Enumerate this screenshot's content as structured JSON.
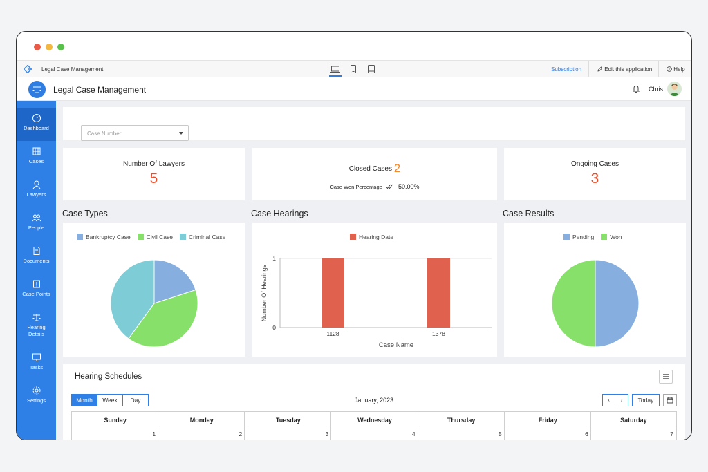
{
  "window": {
    "dots": [
      "#ea5a47",
      "#f4b73f",
      "#58c24a"
    ]
  },
  "topbar": {
    "app_title": "Legal Case Management",
    "subscription": "Subscription",
    "edit": "Edit this application",
    "help": "Help"
  },
  "header": {
    "app_name": "Legal Case Management",
    "user": "Chris"
  },
  "sidebar": {
    "items": [
      {
        "label": "Dashboard",
        "icon": "dashboard-icon"
      },
      {
        "label": "Cases",
        "icon": "cases-icon"
      },
      {
        "label": "Lawyers",
        "icon": "user-icon"
      },
      {
        "label": "People",
        "icon": "people-icon"
      },
      {
        "label": "Documents",
        "icon": "document-icon"
      },
      {
        "label": "Case Points",
        "icon": "case-points-icon"
      },
      {
        "label": "Hearing",
        "label2": "Details",
        "icon": "scales-icon"
      },
      {
        "label": "Tasks",
        "icon": "monitor-icon"
      },
      {
        "label": "Settings",
        "icon": "gear-icon"
      }
    ]
  },
  "filter": {
    "placeholder": "Case Number"
  },
  "stats": {
    "lawyers": {
      "title": "Number Of Lawyers",
      "value": "5"
    },
    "closed": {
      "title": "Closed Cases",
      "value": "2",
      "won_label": "Case Won Percentage",
      "won_value": "50.00%"
    },
    "ongoing": {
      "title": "Ongoing Cases",
      "value": "3"
    }
  },
  "sections": {
    "case_types": "Case Types",
    "case_hearings": "Case Hearings",
    "case_results": "Case Results"
  },
  "chart_data": [
    {
      "type": "pie",
      "title": "Case Types",
      "categories": [
        "Bankruptcy Case",
        "Civil Case",
        "Criminal Case"
      ],
      "values": [
        1,
        2,
        2
      ],
      "colors": [
        "#86aede",
        "#86e069",
        "#7ecdd6"
      ],
      "legend": "top"
    },
    {
      "type": "bar",
      "title": "Case Hearings",
      "categories": [
        "1128",
        "1378"
      ],
      "series": [
        {
          "name": "Hearing Date",
          "values": [
            1,
            1
          ]
        }
      ],
      "xlabel": "Case Name",
      "ylabel": "Number Of Hearings",
      "yticks": [
        "0",
        "1"
      ],
      "ylim": [
        0,
        1
      ],
      "colors": [
        "#e0614d"
      ],
      "legend": "top"
    },
    {
      "type": "pie",
      "title": "Case Results",
      "categories": [
        "Pending",
        "Won"
      ],
      "values": [
        1,
        1
      ],
      "colors": [
        "#86aede",
        "#86e069"
      ],
      "legend": "top"
    }
  ],
  "schedule": {
    "title": "Hearing Schedules",
    "views": [
      "Month",
      "Week",
      "Day"
    ],
    "month": "January, 2023",
    "today": "Today",
    "days": [
      "Sunday",
      "Monday",
      "Tuesday",
      "Wednesday",
      "Thursday",
      "Friday",
      "Saturday"
    ],
    "dates": [
      "1",
      "2",
      "3",
      "4",
      "5",
      "6",
      "7"
    ]
  },
  "colors": {
    "accent": "#2f80e6",
    "number": "#e94e2c",
    "closed_number": "#f28a2e"
  }
}
